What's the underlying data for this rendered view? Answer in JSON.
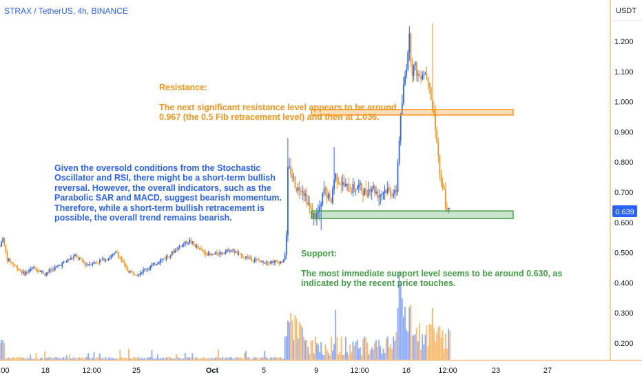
{
  "symbol_title": "STRAX / TetherUS, 4h, BINANCE",
  "currency": "USDT",
  "colors": {
    "axis": "#f2a040",
    "blue": "#2962ff",
    "orange": "#f7931a",
    "green": "#43a047",
    "last_price_bg": "#2962ff"
  },
  "last_price": "0.639",
  "annotations": {
    "resistance": {
      "title": "Resistance:",
      "text": "The next significant resistance level appears to be around\n0.967 (the 0.5 Fib retracement level) and then at 1.036."
    },
    "analysis": {
      "text": "Given the oversold conditions from the Stochastic\nOscillator and RSI, there might be a short-term bullish\nreversal. However, the overall indicators, such as the\nParabolic SAR and MACD, suggest bearish momentum.\nTherefore, while a short-term bullish retracement is\npossible, the overall trend remains bearish."
    },
    "support": {
      "title": "Support:",
      "text": "The most immediate support level seems to be around 0.630, as\nindicated by the recent price touches."
    }
  },
  "chart_data": {
    "type": "candlestick",
    "y_ticks": [
      "1.200",
      "1.100",
      "1.000",
      "0.900",
      "0.800",
      "0.700",
      "0.600",
      "0.500",
      "0.400",
      "0.300",
      "0.200"
    ],
    "x_ticks": [
      ":00",
      "18",
      "12:00",
      "25",
      "Oct",
      "5",
      "9",
      "12:00",
      "16",
      "12:00",
      "23",
      "27"
    ],
    "ylim": [
      0.11,
      1.29
    ],
    "resistance_zone": [
      0.956,
      0.974
    ],
    "support_zone": [
      0.613,
      0.638
    ],
    "price_path": [
      [
        0,
        0.52
      ],
      [
        4,
        0.55
      ],
      [
        10,
        0.48
      ],
      [
        20,
        0.46
      ],
      [
        35,
        0.43
      ],
      [
        50,
        0.45
      ],
      [
        65,
        0.43
      ],
      [
        80,
        0.45
      ],
      [
        95,
        0.47
      ],
      [
        110,
        0.49
      ],
      [
        125,
        0.46
      ],
      [
        140,
        0.47
      ],
      [
        155,
        0.48
      ],
      [
        170,
        0.5
      ],
      [
        185,
        0.44
      ],
      [
        200,
        0.43
      ],
      [
        215,
        0.45
      ],
      [
        230,
        0.47
      ],
      [
        245,
        0.49
      ],
      [
        260,
        0.52
      ],
      [
        275,
        0.54
      ],
      [
        290,
        0.51
      ],
      [
        305,
        0.49
      ],
      [
        320,
        0.5
      ],
      [
        335,
        0.51
      ],
      [
        350,
        0.49
      ],
      [
        365,
        0.48
      ],
      [
        380,
        0.47
      ],
      [
        395,
        0.47
      ],
      [
        412,
        0.47
      ],
      [
        416,
        0.55
      ],
      [
        418,
        0.78
      ],
      [
        422,
        0.77
      ],
      [
        428,
        0.73
      ],
      [
        432,
        0.71
      ],
      [
        438,
        0.72
      ],
      [
        445,
        0.68
      ],
      [
        452,
        0.63
      ],
      [
        458,
        0.62
      ],
      [
        465,
        0.64
      ],
      [
        470,
        0.71
      ],
      [
        475,
        0.69
      ],
      [
        480,
        0.66
      ],
      [
        486,
        0.76
      ],
      [
        492,
        0.74
      ],
      [
        500,
        0.72
      ],
      [
        510,
        0.71
      ],
      [
        520,
        0.72
      ],
      [
        530,
        0.7
      ],
      [
        540,
        0.72
      ],
      [
        550,
        0.69
      ],
      [
        560,
        0.71
      ],
      [
        570,
        0.7
      ],
      [
        575,
        0.69
      ],
      [
        578,
        0.82
      ],
      [
        581,
        0.93
      ],
      [
        586,
        1.05
      ],
      [
        590,
        1.12
      ],
      [
        594,
        1.22
      ],
      [
        598,
        1.1
      ],
      [
        602,
        1.12
      ],
      [
        608,
        1.08
      ],
      [
        614,
        1.1
      ],
      [
        620,
        1.09
      ],
      [
        624,
        1.06
      ],
      [
        627,
        0.98
      ],
      [
        630,
        0.96
      ],
      [
        634,
        0.88
      ],
      [
        640,
        0.72
      ],
      [
        645,
        0.7
      ],
      [
        648,
        0.63
      ],
      [
        652,
        0.64
      ],
      [
        655,
        0.63
      ]
    ],
    "spikes": [
      {
        "x": 418,
        "high": 0.88
      },
      {
        "x": 486,
        "high": 0.85
      },
      {
        "x": 594,
        "high": 1.25
      },
      {
        "x": 627,
        "high": 1.26
      },
      {
        "x": 466,
        "low": 0.575
      },
      {
        "x": 455,
        "low": 0.59
      }
    ],
    "volume_note": "relative volume bars, low until rally then spikes"
  }
}
